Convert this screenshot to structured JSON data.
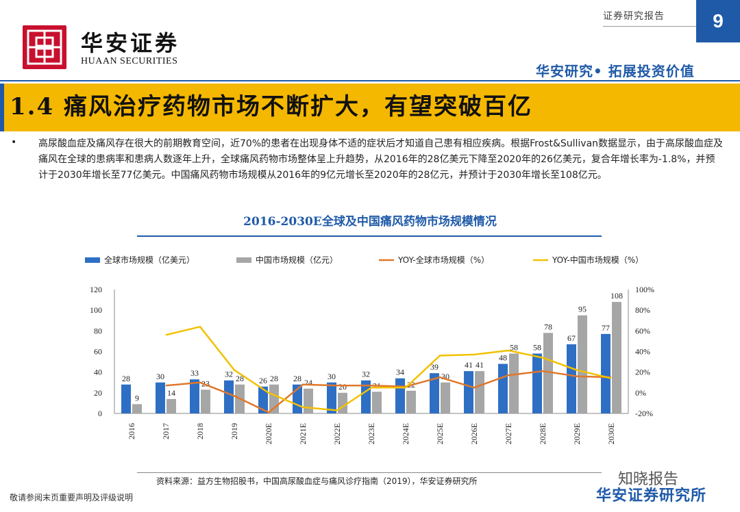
{
  "header": {
    "logo_text_cn": "华安证券",
    "logo_text_en": "HUAAN SECURITIES",
    "report_type": "证券研究报告",
    "page_number": "9",
    "slogan": "华安研究• 拓展投资价值"
  },
  "section": {
    "title": "1.4 痛风治疗药物市场不断扩大，有望突破百亿"
  },
  "body": {
    "bullet": "•",
    "paragraph": "高尿酸血症及痛风存在很大的前期教育空间，近70%的患者在出现身体不适的症状后才知道自己患有相应疾病。根据Frost&Sullivan数据显示，由于高尿酸血症及痛风在全球的患病率和患病人数逐年上升，全球痛风药物市场整体呈上升趋势，从2016年的28亿美元下降至2020年的26亿美元，复合年增长率为-1.8%，并预计于2030年增长至77亿美元。中国痛风药物市场规模从2016年的9亿元增长至2020年的28亿元，并预计于2030年增长至108亿元。"
  },
  "chart_data": {
    "type": "bar",
    "title": "2016-2030E全球及中国痛风药物市场规模情况",
    "categories": [
      "2016",
      "2017",
      "2018",
      "2019",
      "2020E",
      "2021E",
      "2022E",
      "2023E",
      "2024E",
      "2025E",
      "2026E",
      "2027E",
      "2028E",
      "2029E",
      "2030E"
    ],
    "series": [
      {
        "name": "全球市场规模（亿美元）",
        "kind": "bar",
        "axis": "left",
        "color": "#2e6fc4",
        "values": [
          28,
          30,
          33,
          32,
          26,
          28,
          30,
          32,
          34,
          39,
          41,
          48,
          58,
          67,
          77
        ]
      },
      {
        "name": "中国市场规模（亿元）",
        "kind": "bar",
        "axis": "left",
        "color": "#a6a6a6",
        "values": [
          9,
          14,
          23,
          28,
          28,
          24,
          20,
          21,
          22,
          30,
          41,
          58,
          78,
          95,
          108
        ]
      },
      {
        "name": "YOY-全球市场规模（%）",
        "kind": "line",
        "axis": "right",
        "color": "#e0772a",
        "values": [
          null,
          7,
          10,
          -3,
          -19,
          8,
          7,
          7,
          6,
          15,
          5,
          17,
          21,
          16,
          15
        ]
      },
      {
        "name": "YOY-中国市场规模（%）",
        "kind": "line",
        "axis": "right",
        "color": "#f2c100",
        "values": [
          null,
          56,
          64,
          22,
          0,
          -14,
          -17,
          5,
          5,
          36,
          37,
          41,
          34,
          22,
          14
        ]
      }
    ],
    "ylim_left": [
      0,
      120
    ],
    "yticks_left": [
      "0",
      "20",
      "40",
      "60",
      "80",
      "100",
      "120"
    ],
    "ylim_right": [
      -20,
      100
    ],
    "yticks_right": [
      "-20%",
      "0%",
      "20%",
      "40%",
      "60%",
      "80%",
      "100%"
    ],
    "legend_position": "top",
    "grid": false
  },
  "source": "资料来源：益方生物招股书，中国高尿酸血症与痛风诊疗指南（2019），华安证券研究所",
  "footer": {
    "disclaimer": "敬请参阅末页重要声明及评级说明",
    "watermark": "知晓报告",
    "brand": "华安证券研究所"
  },
  "colors": {
    "brand_blue": "#1f5aa8",
    "title_bar": "#f5b800",
    "logo_red": "#c8102e"
  }
}
